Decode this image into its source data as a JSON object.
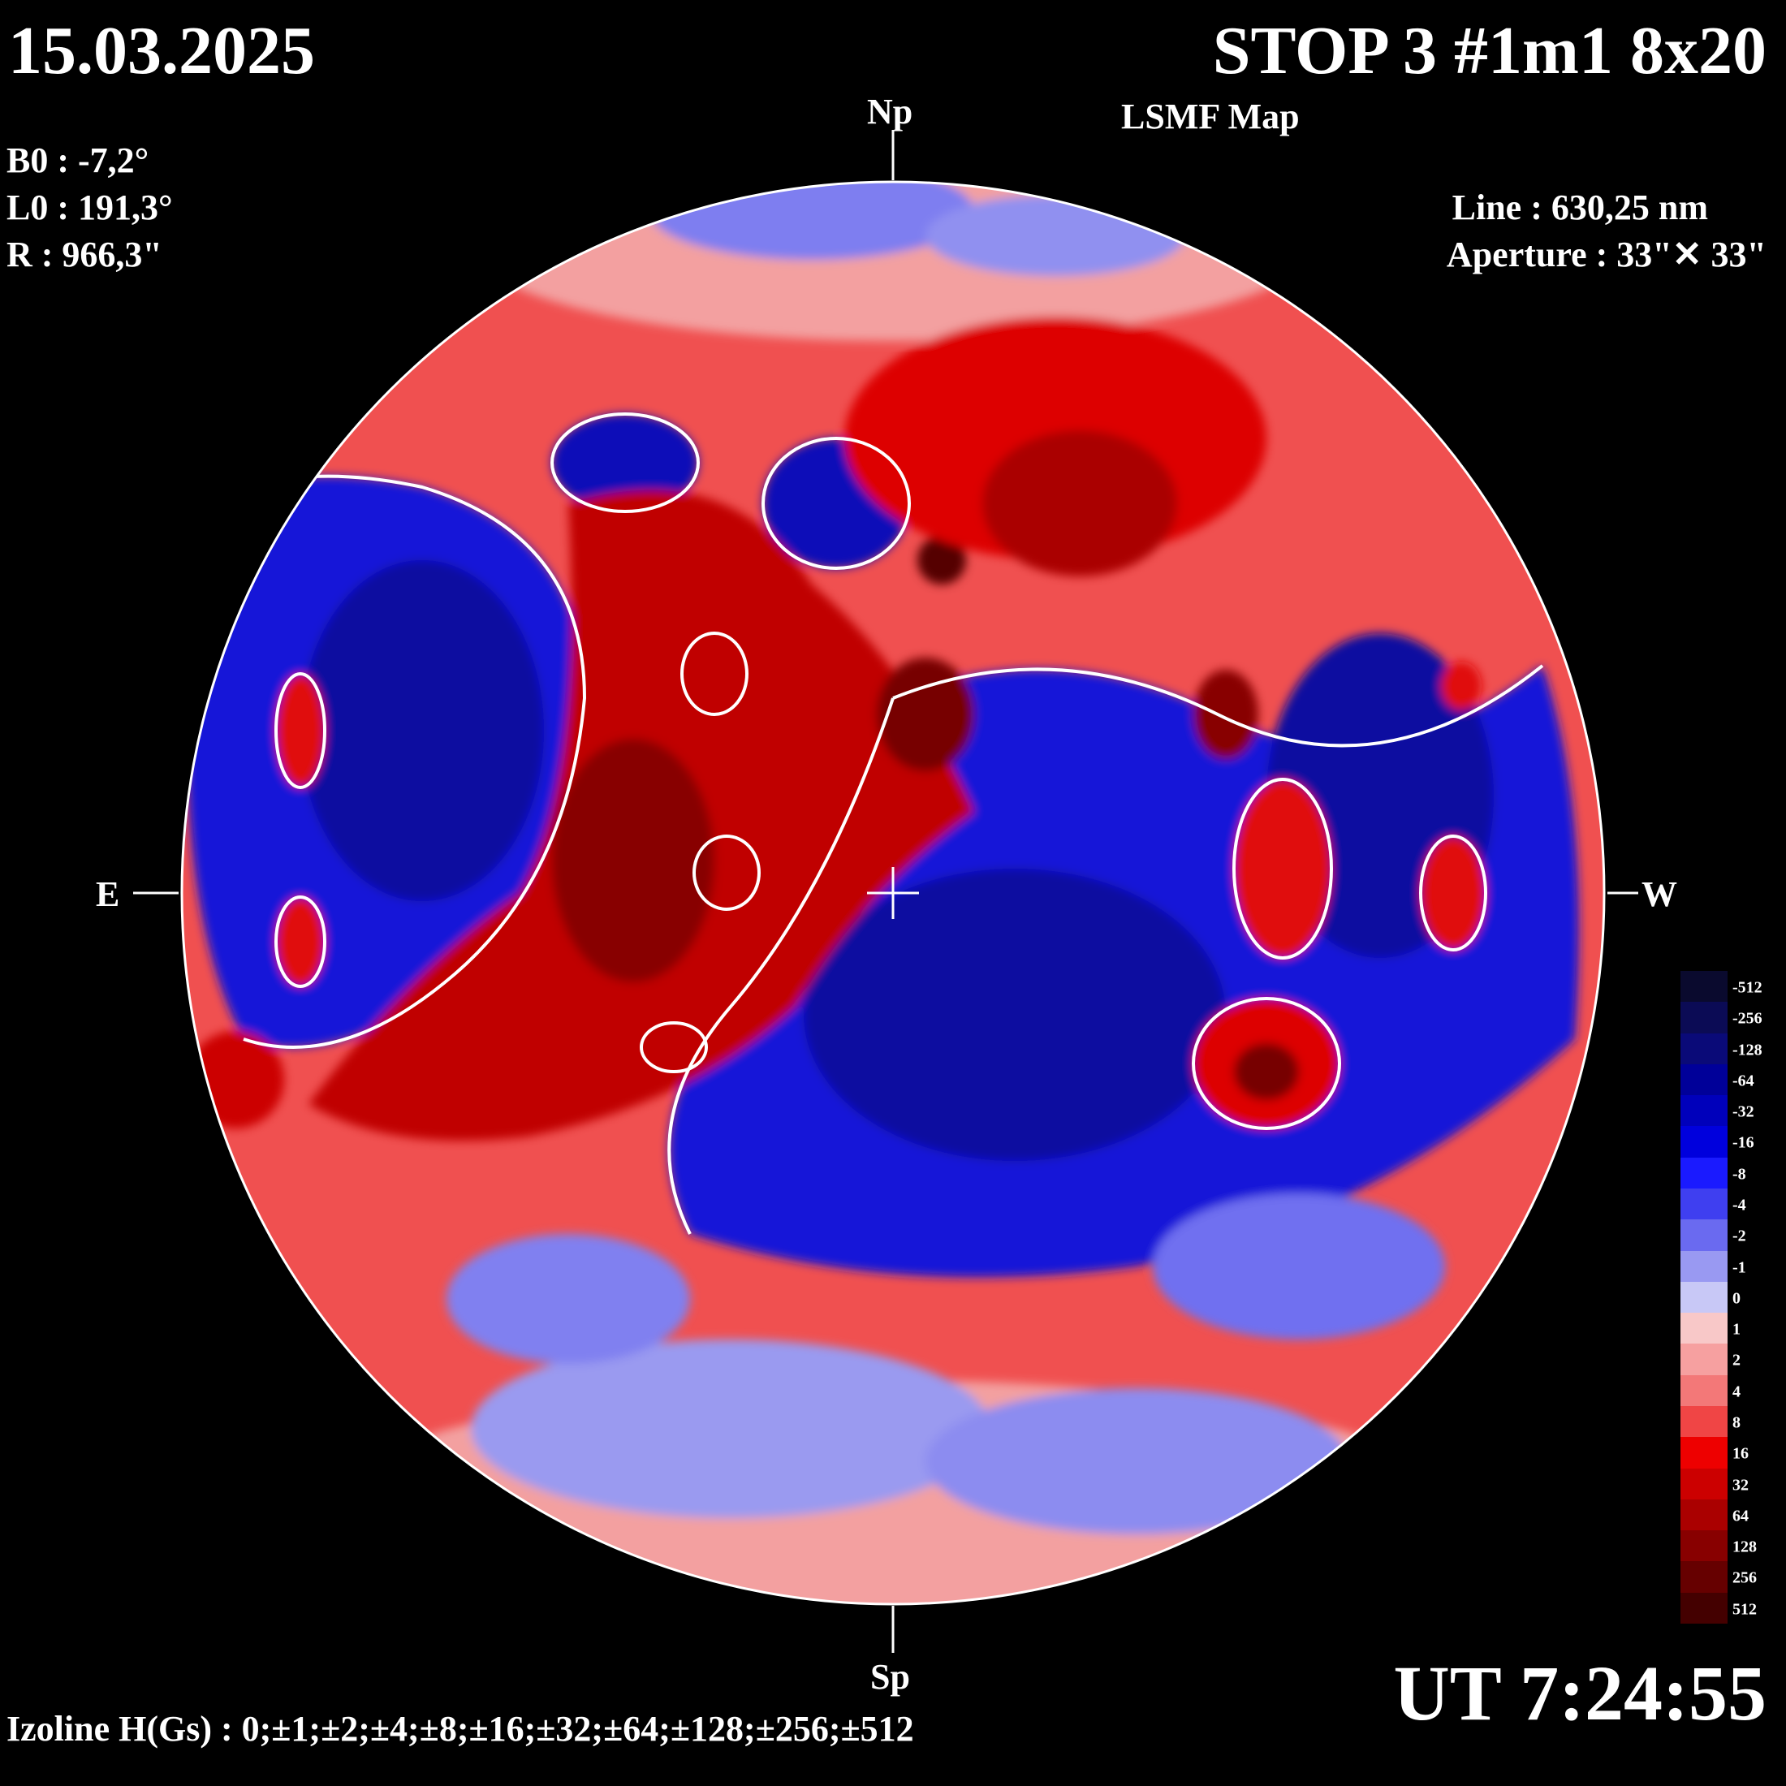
{
  "header": {
    "date": "15.03.2025",
    "title": "STOP 3 #1m1 8x20",
    "subtitle": "LSMF  Map"
  },
  "params": {
    "b0": "B0 : -7,2°",
    "l0": "L0 : 191,3°",
    "r": "R  : 966,3\""
  },
  "instrument": {
    "line": "Line :  630,25 nm",
    "aperture": "Aperture : 33\"✕ 33\""
  },
  "directions": {
    "north": "Np",
    "south": "Sp",
    "east": "E",
    "west": "W"
  },
  "time": "UT 7:24:55",
  "izoline": "Izoline H(Gs) : 0;±1;±2;±4;±8;±16;±32;±64;±128;±256;±512",
  "colorscale": {
    "labels": [
      "-512",
      "-256",
      "-128",
      "-64",
      "-32",
      "-16",
      "-8",
      "-4",
      "-2",
      "-1",
      "0",
      "1",
      "2",
      "4",
      "8",
      "16",
      "32",
      "64",
      "128",
      "256",
      "512"
    ],
    "colors": [
      "#0a0a2e",
      "#0b0b55",
      "#0a0a78",
      "#000099",
      "#0000bb",
      "#0000dd",
      "#1a1aff",
      "#3f3ff0",
      "#6a6af0",
      "#9999f2",
      "#c8c8f6",
      "#f8c8c8",
      "#f6a0a0",
      "#f37878",
      "#f04545",
      "#ee0000",
      "#cc0000",
      "#aa0000",
      "#880000",
      "#660000",
      "#440000"
    ]
  },
  "map": {
    "positive_color": "#ee1010",
    "negative_color": "#1515e0",
    "neutral_color": "#f3b8b8"
  }
}
